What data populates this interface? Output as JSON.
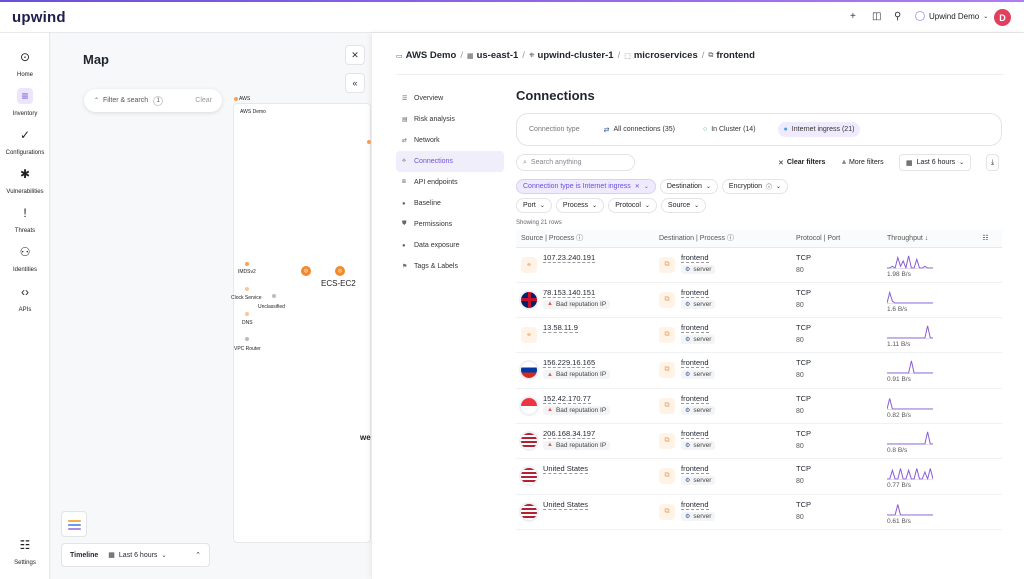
{
  "topbar": {
    "logo": "upwind",
    "user": "Upwind Demo",
    "avatar": "D"
  },
  "nav": [
    {
      "label": "Home",
      "icon": "home-icon",
      "glyph": "⊙"
    },
    {
      "label": "Inventory",
      "icon": "inventory-icon",
      "glyph": "≡"
    },
    {
      "label": "Configurations",
      "icon": "check-icon",
      "glyph": "✓"
    },
    {
      "label": "Vulnerabilities",
      "icon": "bug-icon",
      "glyph": "✱"
    },
    {
      "label": "Threats",
      "icon": "alert-icon",
      "glyph": "!"
    },
    {
      "label": "Identities",
      "icon": "user-icon",
      "glyph": "⚇"
    },
    {
      "label": "APIs",
      "icon": "code-icon",
      "glyph": "‹›"
    }
  ],
  "nav_settings": {
    "label": "Settings",
    "glyph": "☷"
  },
  "map": {
    "title": "Map",
    "filter_label": "Filter & search",
    "filter_count": "1",
    "clear_label": "Clear",
    "timeline_label": "Timeline",
    "timeline_range": "Last 6 hours",
    "node_imdsv2": "IMDSv2",
    "node_clock": "Clock Service",
    "node_unclassified": "Unclassified",
    "node_dns": "DNS",
    "node_vpc": "VPC Router",
    "node_ecs": "ECS-EC2",
    "node_we": "we",
    "node_aws": "AWS",
    "node_awsdemo": "AWS Demo"
  },
  "breadcrumb": [
    {
      "label": "AWS Demo",
      "icon": "aws-icon",
      "glyph": "▭"
    },
    {
      "label": "us-east-1",
      "icon": "us-flag-icon",
      "glyph": "▦"
    },
    {
      "label": "upwind-cluster-1",
      "icon": "cluster-icon",
      "glyph": "⎈"
    },
    {
      "label": "microservices",
      "icon": "namespace-icon",
      "glyph": "⬚"
    },
    {
      "label": "frontend",
      "icon": "workload-icon",
      "glyph": "⧉"
    }
  ],
  "subnav": [
    {
      "label": "Overview",
      "glyph": "☰"
    },
    {
      "label": "Risk analysis",
      "glyph": "▤"
    },
    {
      "label": "Network",
      "glyph": "⇄"
    },
    {
      "label": "Connections",
      "glyph": "⟡"
    },
    {
      "label": "API endpoints",
      "glyph": "⧈"
    },
    {
      "label": "Baseline",
      "glyph": "●"
    },
    {
      "label": "Permissions",
      "glyph": "⛊"
    },
    {
      "label": "Data exposure",
      "glyph": "●"
    },
    {
      "label": "Tags & Labels",
      "glyph": "⚑"
    }
  ],
  "connections": {
    "title": "Connections",
    "type_label": "Connection type",
    "types": [
      {
        "label": "All connections (35)",
        "glyph": "⇄",
        "color": "#3c5a9a"
      },
      {
        "label": "In Cluster (14)",
        "glyph": "○",
        "color": "#3aa65a"
      },
      {
        "label": "Internet ingress (21)",
        "glyph": "●",
        "color": "#4a9ce0"
      }
    ],
    "search_placeholder": "Search anything",
    "clear_filters": "Clear filters",
    "more_filters": "More filters",
    "time_range": "Last 6 hours",
    "chips": [
      "Connection type is Internet ingress",
      "Destination",
      "Encryption",
      "Port",
      "Process",
      "Protocol",
      "Source"
    ],
    "showing": "Showing 21 rows",
    "columns": [
      "Source | Process",
      "Destination | Process",
      "Protocol | Port",
      "Throughput"
    ],
    "rows": [
      {
        "source": "107.23.240.191",
        "source_icon": "link-icon",
        "badge": "",
        "dest": "frontend",
        "dest_tag": "server",
        "protocol": "TCP",
        "port": "80",
        "throughput": "1.98 B/s",
        "spark": [
          0,
          0,
          1,
          0,
          6,
          1,
          4,
          0,
          7,
          0,
          0,
          5,
          0,
          0,
          1,
          0,
          0,
          0
        ]
      },
      {
        "source": "78.153.140.151",
        "source_icon": "uk-flag-icon",
        "badge": "Bad reputation IP",
        "dest": "frontend",
        "dest_tag": "server",
        "protocol": "TCP",
        "port": "80",
        "throughput": "1.6 B/s",
        "spark": [
          0,
          6,
          1,
          0,
          0,
          0,
          0,
          0,
          0,
          0,
          0,
          0,
          0,
          0,
          0,
          0,
          0,
          0
        ]
      },
      {
        "source": "13.58.11.9",
        "source_icon": "link-icon",
        "badge": "",
        "dest": "frontend",
        "dest_tag": "server",
        "protocol": "TCP",
        "port": "80",
        "throughput": "1.11 B/s",
        "spark": [
          0,
          0,
          0,
          0,
          0,
          0,
          0,
          0,
          0,
          0,
          0,
          0,
          0,
          0,
          0,
          7,
          0,
          0
        ]
      },
      {
        "source": "156.229.16.165",
        "source_icon": "ru-flag-icon",
        "badge": "Bad reputation IP",
        "dest": "frontend",
        "dest_tag": "server",
        "protocol": "TCP",
        "port": "80",
        "throughput": "0.91 B/s",
        "spark": [
          0,
          0,
          0,
          0,
          0,
          0,
          0,
          0,
          0,
          7,
          0,
          0,
          0,
          0,
          0,
          0,
          0,
          0
        ]
      },
      {
        "source": "152.42.170.77",
        "source_icon": "sg-flag-icon",
        "badge": "Bad reputation IP",
        "dest": "frontend",
        "dest_tag": "server",
        "protocol": "TCP",
        "port": "80",
        "throughput": "0.82 B/s",
        "spark": [
          0,
          6,
          0,
          0,
          0,
          0,
          0,
          0,
          0,
          0,
          0,
          0,
          0,
          0,
          0,
          0,
          0,
          0
        ]
      },
      {
        "source": "206.168.34.197",
        "source_icon": "us-flag-icon",
        "badge": "Bad reputation IP",
        "dest": "frontend",
        "dest_tag": "server",
        "protocol": "TCP",
        "port": "80",
        "throughput": "0.8 B/s",
        "spark": [
          0,
          0,
          0,
          0,
          0,
          0,
          0,
          0,
          0,
          0,
          0,
          0,
          0,
          0,
          0,
          7,
          0,
          0
        ]
      },
      {
        "source": "United States",
        "source_icon": "us-flag-icon",
        "badge": "",
        "dest": "frontend",
        "dest_tag": "server",
        "protocol": "TCP",
        "port": "80",
        "throughput": "0.77 B/s",
        "spark": [
          0,
          0,
          5,
          0,
          0,
          6,
          0,
          0,
          5,
          0,
          0,
          6,
          0,
          0,
          4,
          0,
          6,
          0
        ]
      },
      {
        "source": "United States",
        "source_icon": "us-flag-icon",
        "badge": "",
        "dest": "frontend",
        "dest_tag": "server",
        "protocol": "TCP",
        "port": "80",
        "throughput": "0.61 B/s",
        "spark": [
          0,
          0,
          0,
          0,
          6,
          0,
          0,
          0,
          0,
          0,
          0,
          0,
          0,
          0,
          0,
          0,
          0,
          0
        ]
      }
    ]
  },
  "colors": {
    "accent": "#6c4fd8",
    "spark": "#8a5cd6",
    "warning": "#e25c4a"
  }
}
